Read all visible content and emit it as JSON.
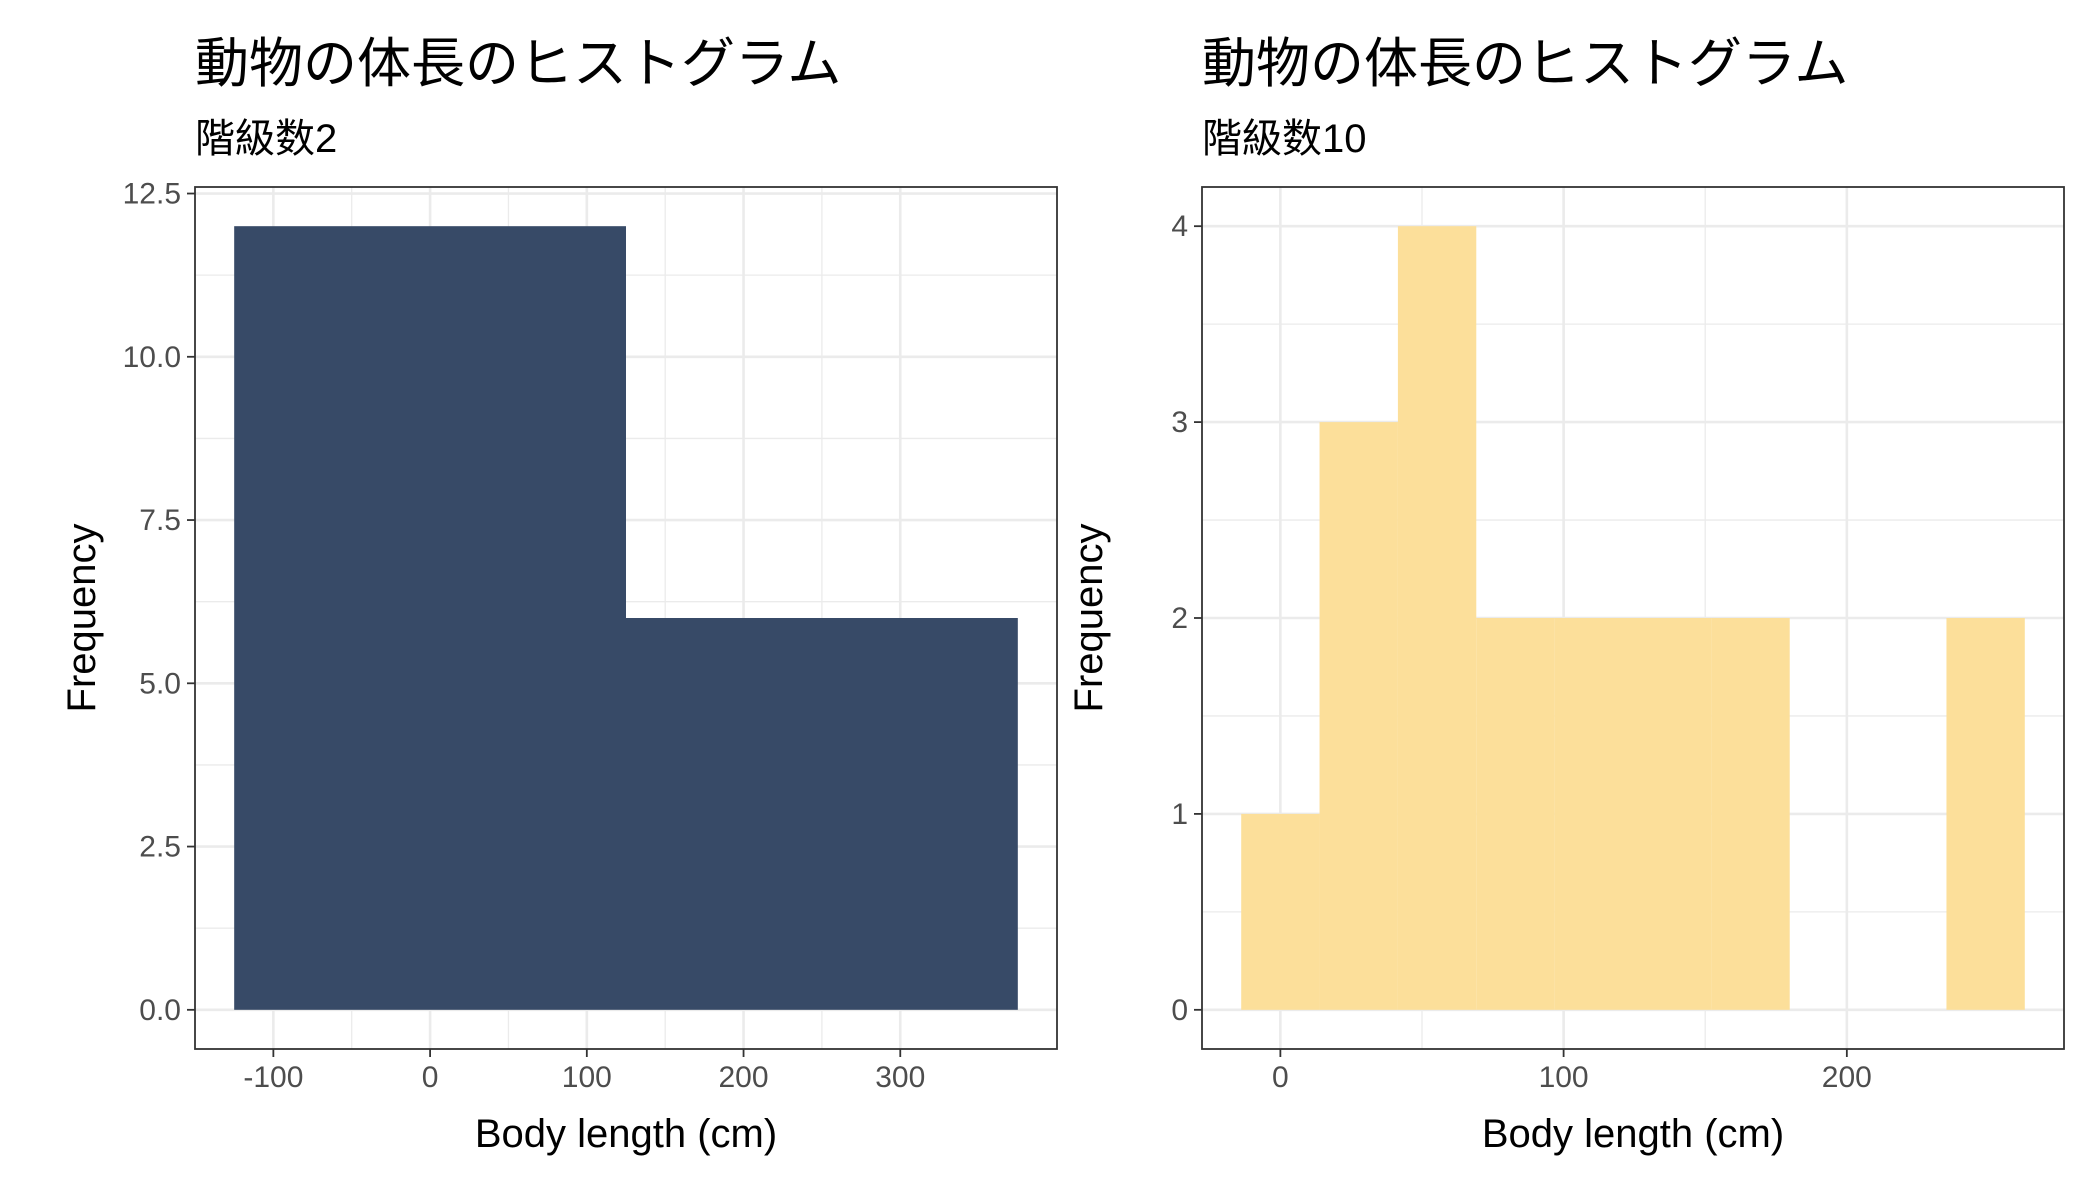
{
  "chart_data": [
    {
      "type": "histogram",
      "title": "動物の体長のヒストグラム",
      "subtitle": "階級数2",
      "xlabel": "Body length (cm)",
      "ylabel": "Frequency",
      "bins": [
        -125,
        125,
        375
      ],
      "values": [
        12,
        6
      ],
      "color": "#374a67",
      "xlim": [
        -150,
        400
      ],
      "ylim": [
        -0.6,
        12.6
      ],
      "xticks": [
        -100,
        0,
        100,
        200,
        300
      ],
      "yticks": [
        {
          "value": 0,
          "label": "0.0"
        },
        2.5,
        {
          "value": 5,
          "label": "5.0"
        },
        7.5,
        {
          "value": 10,
          "label": "10.0"
        },
        12.5
      ],
      "grid": true
    },
    {
      "type": "histogram",
      "title": "動物の体長のヒストグラム",
      "subtitle": "階級数10",
      "xlabel": "Body length (cm)",
      "ylabel": "Frequency",
      "bins": [
        -13.83,
        13.83,
        41.5,
        69.17,
        96.83,
        124.5,
        152.17,
        179.83,
        207.5,
        235.17,
        262.83
      ],
      "values": [
        1,
        3,
        4,
        2,
        2,
        2,
        2,
        0,
        0,
        2
      ],
      "color": "#fcdf9a",
      "xlim": [
        -27.67,
        276.67
      ],
      "ylim": [
        -0.2,
        4.2
      ],
      "xticks": [
        0,
        100,
        200
      ],
      "yticks": [
        0,
        1,
        2,
        3,
        4
      ],
      "grid": true
    }
  ]
}
